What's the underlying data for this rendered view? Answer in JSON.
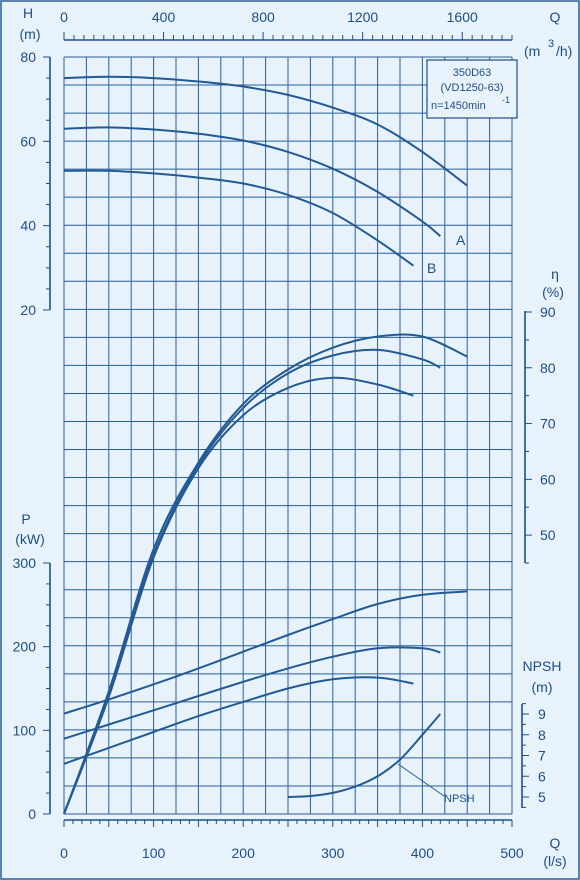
{
  "chart_data": {
    "type": "line",
    "title_box": [
      "350D63",
      "(VD1250-63)",
      "n=1450min"
    ],
    "title_box_sup": "-1",
    "x_bottom": {
      "label": "Q",
      "unit": "(l/s)",
      "ticks": [
        0,
        100,
        200,
        300,
        400,
        500
      ],
      "range": [
        0,
        500
      ]
    },
    "x_top": {
      "label": "Q",
      "unit_main": "(m",
      "unit_sup": "3",
      "unit_end": "/h)",
      "ticks": [
        0,
        400,
        800,
        1200,
        1600
      ],
      "range": [
        0,
        1800
      ]
    },
    "head_axis": {
      "label": "H",
      "unit": "(m)",
      "ticks": [
        20,
        40,
        60,
        80
      ],
      "range": [
        20,
        80
      ]
    },
    "eff_axis": {
      "label": "η",
      "unit": "(%)",
      "ticks": [
        50,
        60,
        70,
        80,
        90
      ],
      "range": [
        45,
        90
      ]
    },
    "power_axis": {
      "label": "P",
      "unit": "(kW)",
      "ticks": [
        0,
        100,
        200,
        300
      ],
      "range": [
        0,
        300
      ]
    },
    "npsh_axis": {
      "label": "NPSH",
      "unit": "(m)",
      "ticks": [
        5,
        6,
        7,
        8,
        9
      ],
      "range": [
        4.5,
        9.5
      ]
    },
    "labels": {
      "A": "A",
      "B": "B",
      "NPSH": "NPSH"
    },
    "series": {
      "head": [
        {
          "name": "",
          "x": [
            0,
            50,
            100,
            150,
            200,
            250,
            300,
            350,
            400,
            450
          ],
          "y": [
            75,
            75.3,
            75,
            74.2,
            73,
            71,
            68,
            64,
            57.5,
            49.5
          ]
        },
        {
          "name": "A",
          "x": [
            0,
            50,
            100,
            150,
            200,
            250,
            300,
            350,
            400,
            420
          ],
          "y": [
            63,
            63.3,
            62.8,
            61.8,
            60.2,
            57.5,
            53.5,
            48,
            41,
            37.5
          ]
        },
        {
          "name": "B",
          "x": [
            0,
            50,
            100,
            150,
            200,
            250,
            300,
            350,
            390
          ],
          "y": [
            53,
            53,
            52.4,
            51.4,
            50,
            47.3,
            43,
            36.5,
            30.5
          ]
        }
      ],
      "efficiency": [
        {
          "name": "",
          "x": [
            0,
            50,
            100,
            150,
            200,
            250,
            300,
            350,
            400,
            450
          ],
          "y": [
            0,
            22,
            47.5,
            63,
            73.5,
            79.7,
            83.6,
            85.6,
            85.6,
            82
          ]
        },
        {
          "name": "",
          "x": [
            0,
            50,
            100,
            150,
            200,
            250,
            300,
            350,
            400,
            420
          ],
          "y": [
            0,
            21.5,
            46.5,
            62.5,
            72.8,
            79,
            82.2,
            83.2,
            81.5,
            80
          ]
        },
        {
          "name": "",
          "x": [
            0,
            50,
            100,
            150,
            200,
            250,
            300,
            350,
            390
          ],
          "y": [
            0,
            21,
            46,
            62,
            71.5,
            76.4,
            78.2,
            77,
            75
          ]
        }
      ],
      "power": [
        {
          "name": "",
          "x": [
            0,
            50,
            100,
            150,
            200,
            250,
            300,
            350,
            400,
            450
          ],
          "y": [
            120,
            137,
            155,
            174,
            194,
            214,
            233,
            251,
            262,
            266
          ]
        },
        {
          "name": "",
          "x": [
            0,
            50,
            100,
            150,
            200,
            250,
            300,
            350,
            400,
            420
          ],
          "y": [
            90,
            107,
            124,
            141,
            158,
            174,
            188,
            198,
            198,
            193
          ]
        },
        {
          "name": "",
          "x": [
            0,
            50,
            100,
            150,
            200,
            250,
            300,
            350,
            390
          ],
          "y": [
            60,
            79,
            98,
            117,
            134,
            150,
            161,
            163,
            156
          ]
        }
      ],
      "npsh": [
        {
          "name": "NPSH",
          "x": [
            250,
            275,
            300,
            325,
            350,
            375,
            400,
            420
          ],
          "y": [
            5,
            5.05,
            5.2,
            5.5,
            6,
            6.8,
            8,
            9
          ]
        }
      ]
    }
  }
}
